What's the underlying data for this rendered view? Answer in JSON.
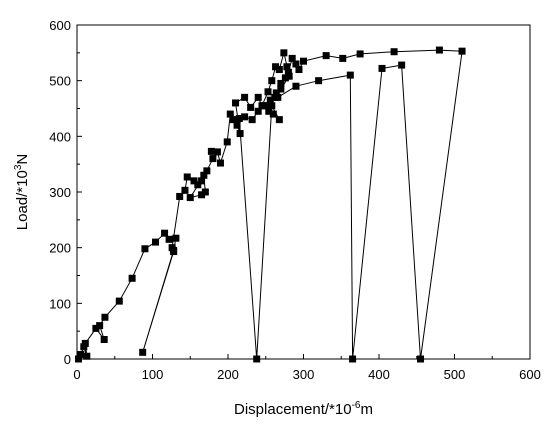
{
  "chart_data": {
    "type": "scatter",
    "title": "",
    "xlabel": {
      "base": "Displacement/*10",
      "exp": "-6",
      "unit": "m"
    },
    "ylabel": {
      "base": "Load/*10",
      "exp": "3",
      "unit": "N"
    },
    "xlim": [
      0,
      600
    ],
    "ylim": [
      0,
      600
    ],
    "x_ticks": [
      0,
      100,
      200,
      300,
      400,
      500,
      600
    ],
    "y_ticks": [
      0,
      100,
      200,
      300,
      400,
      500,
      600
    ],
    "grid": false,
    "legend": "none",
    "marker": "square",
    "line_color": "#000000",
    "series": [
      {
        "points": [
          [
            2,
            0
          ],
          [
            5,
            8
          ],
          [
            9,
            22
          ],
          [
            13,
            5
          ],
          [
            11,
            28
          ],
          [
            25,
            55
          ],
          [
            36,
            35
          ],
          [
            30,
            60
          ],
          [
            37,
            75
          ],
          [
            56,
            104
          ],
          [
            73,
            145
          ],
          [
            90,
            198
          ],
          [
            104,
            210
          ],
          [
            116,
            226
          ],
          [
            122,
            215
          ],
          [
            131,
            217
          ],
          [
            128,
            195
          ],
          [
            87,
            12
          ],
          [
            128,
            193
          ],
          [
            126,
            200
          ],
          [
            136,
            292
          ],
          [
            143,
            303
          ],
          [
            146,
            327
          ],
          [
            155,
            320
          ],
          [
            160,
            313
          ],
          [
            165,
            320
          ],
          [
            168,
            330
          ],
          [
            170,
            300
          ],
          [
            165,
            295
          ],
          [
            150,
            290
          ],
          [
            172,
            338
          ],
          [
            180,
            360
          ],
          [
            178,
            373
          ],
          [
            186,
            372
          ],
          [
            190,
            352
          ],
          [
            199,
            390
          ],
          [
            203,
            440
          ],
          [
            207,
            430
          ],
          [
            212,
            420
          ],
          [
            216,
            405
          ],
          [
            210,
            460
          ],
          [
            222,
            470
          ],
          [
            230,
            452
          ],
          [
            240,
            470
          ],
          [
            245,
            455
          ],
          [
            253,
            480
          ],
          [
            258,
            500
          ],
          [
            263,
            525
          ],
          [
            268,
            520
          ],
          [
            274,
            550
          ],
          [
            280,
            515
          ],
          [
            285,
            540
          ],
          [
            290,
            530
          ],
          [
            294,
            520
          ],
          [
            300,
            535
          ],
          [
            330,
            545
          ],
          [
            352,
            540
          ],
          [
            375,
            548
          ],
          [
            420,
            552
          ],
          [
            480,
            555
          ],
          [
            510,
            553
          ],
          [
            455,
            0
          ],
          [
            430,
            528
          ],
          [
            404,
            522
          ],
          [
            365,
            0
          ],
          [
            362,
            510
          ],
          [
            320,
            500
          ],
          [
            290,
            490
          ],
          [
            266,
            470
          ],
          [
            256,
            465
          ],
          [
            248,
            455
          ],
          [
            240,
            445
          ],
          [
            232,
            430
          ],
          [
            222,
            435
          ],
          [
            215,
            432
          ],
          [
            238,
            0
          ],
          [
            258,
            455
          ],
          [
            268,
            430
          ],
          [
            260,
            440
          ],
          [
            254,
            445
          ],
          [
            250,
            455
          ],
          [
            262,
            470
          ],
          [
            270,
            495
          ],
          [
            276,
            505
          ],
          [
            278,
            525
          ],
          [
            281,
            508
          ],
          [
            270,
            485
          ],
          [
            264,
            478
          ]
        ]
      }
    ]
  }
}
